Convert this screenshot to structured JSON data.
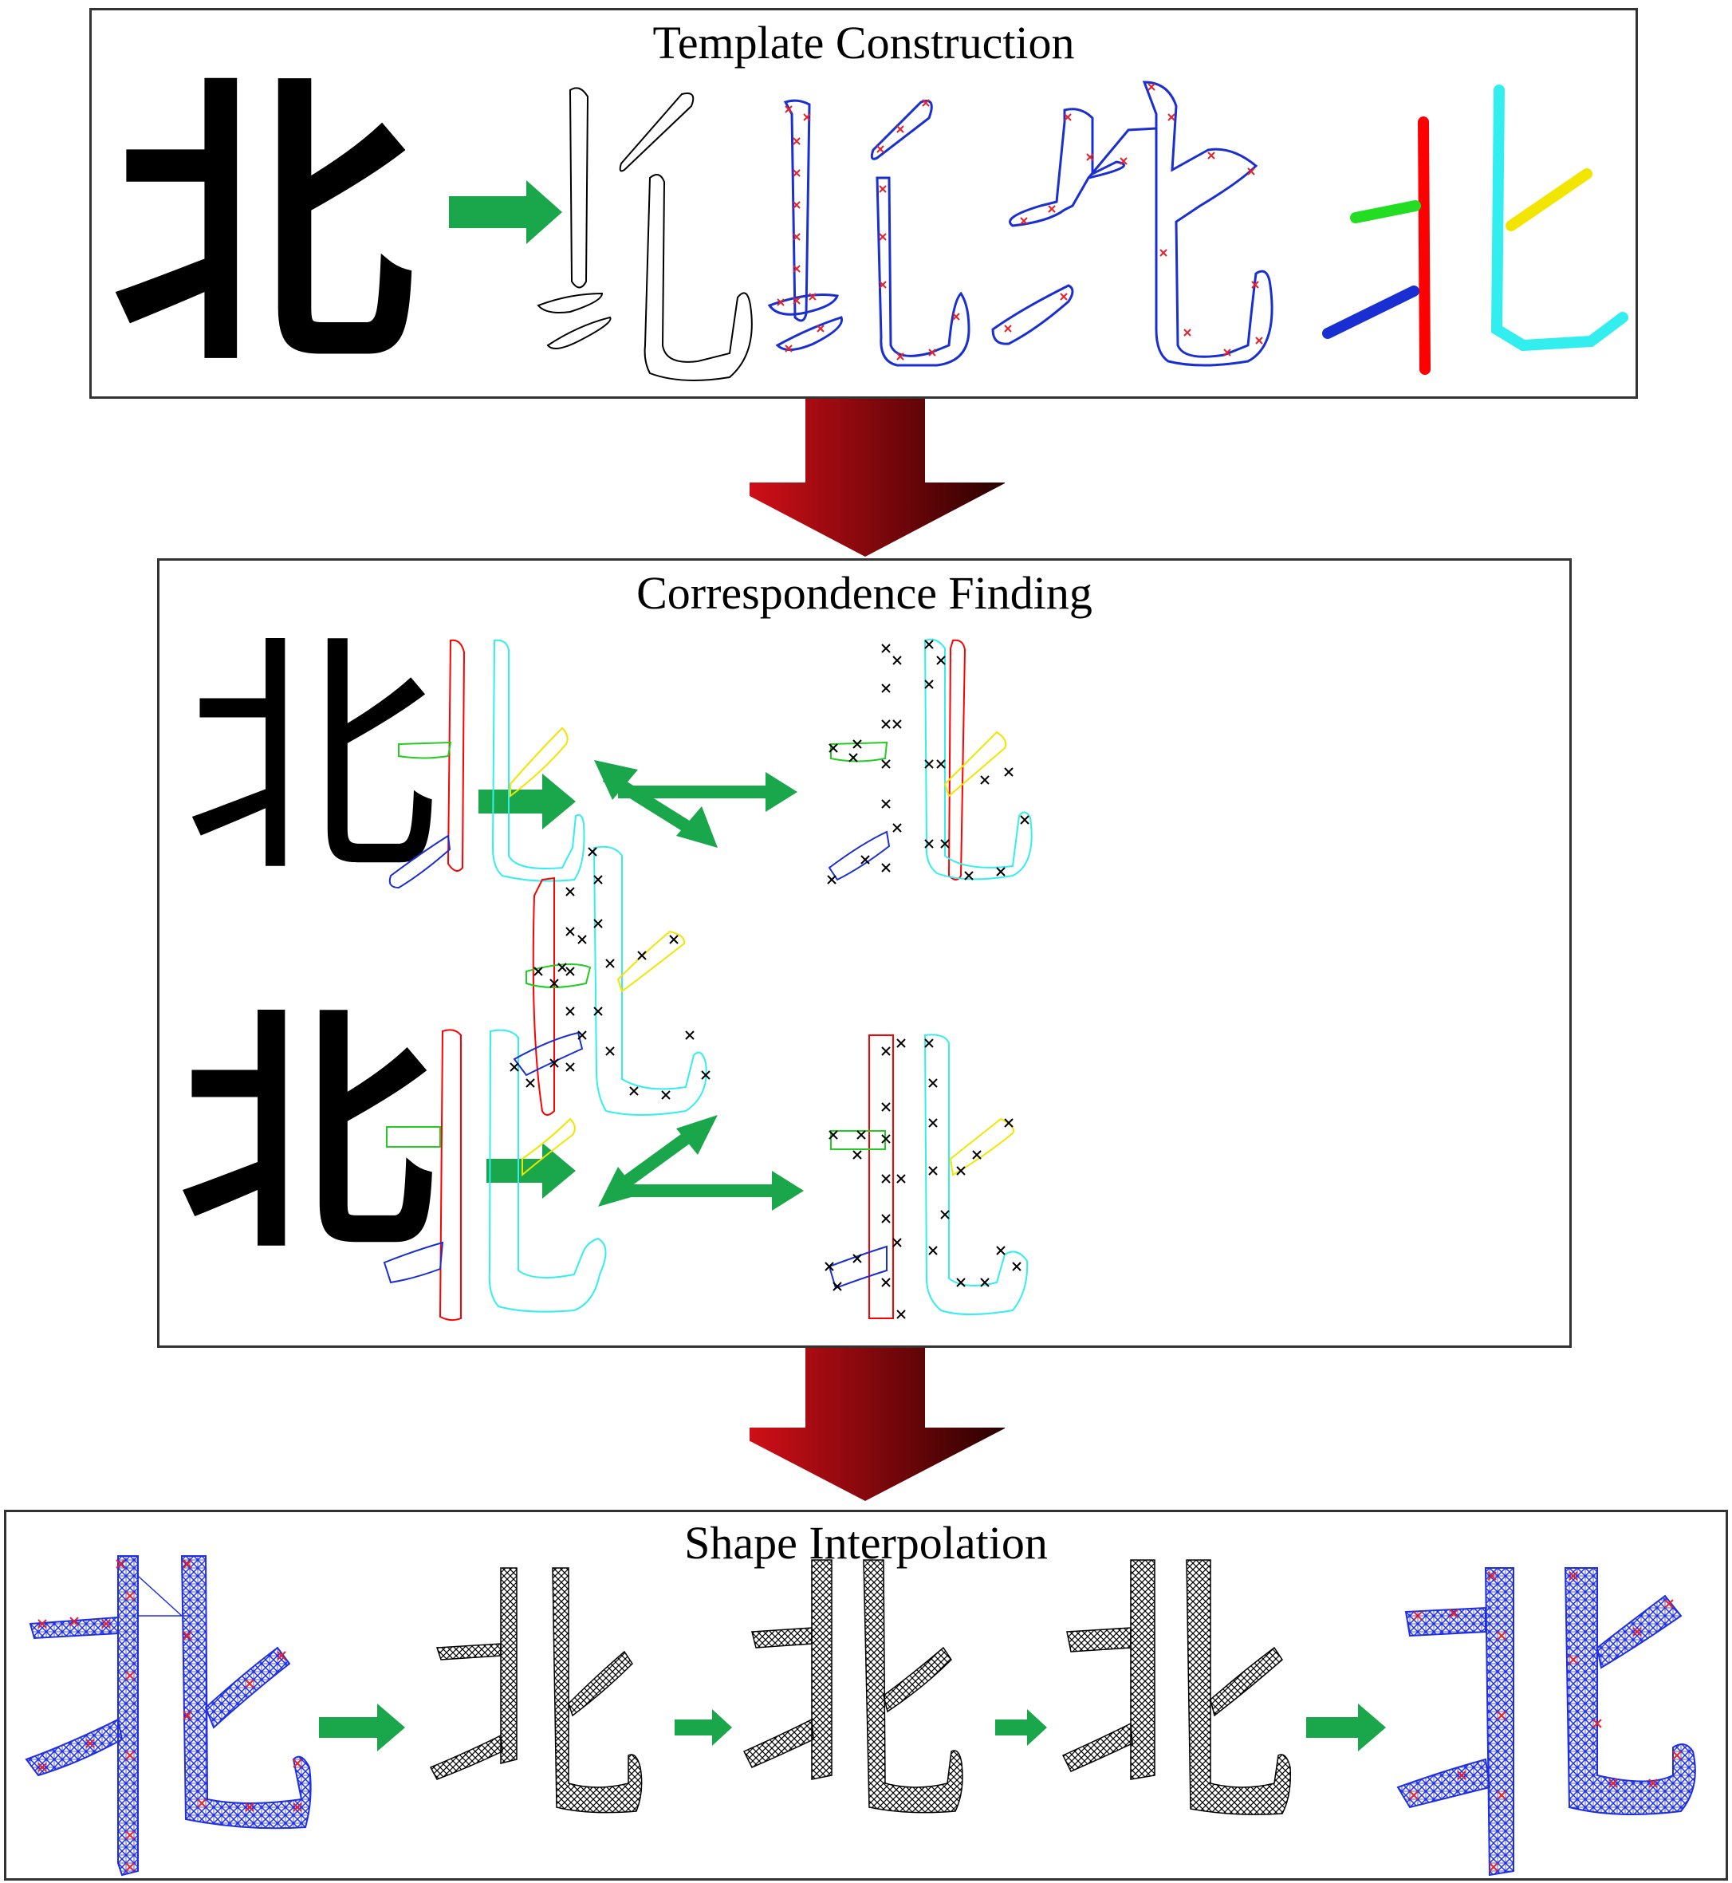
{
  "panels": {
    "template": {
      "title": "Template Construction"
    },
    "correspondence": {
      "title": "Correspondence Finding"
    },
    "interpolation": {
      "title": "Shape Interpolation"
    }
  },
  "glyphs": {
    "character": "北"
  },
  "colors": {
    "green_arrow": "#1aa64a",
    "dark_red_arrow": "#8b0000",
    "stroke_red": "#ff0000",
    "stroke_cyan": "#33eeee",
    "stroke_yellow": "#f2e600",
    "stroke_green": "#22cc22",
    "stroke_blue": "#1a2fd1",
    "mesh_blue": "#1f2fe0",
    "marker_red": "#e8202a"
  }
}
